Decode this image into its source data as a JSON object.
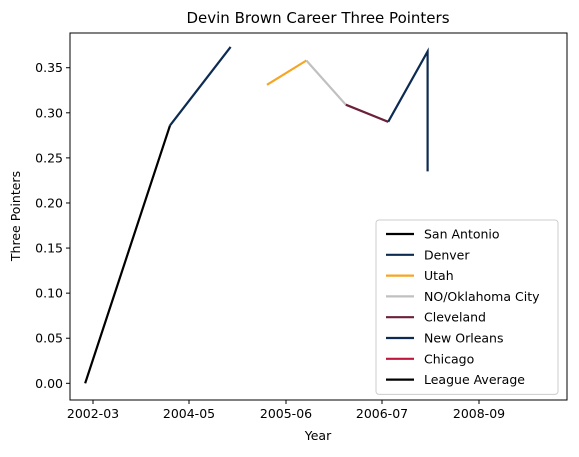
{
  "chart_data": {
    "type": "line",
    "title": "Devin Brown Career Three Pointers",
    "xlabel": "Year",
    "ylabel": "Three Pointers",
    "x_tick_labels": [
      "2002-03",
      "2004-05",
      "2005-06",
      "2006-07",
      "2008-09"
    ],
    "y_ticks": [
      0.0,
      0.05,
      0.1,
      0.15,
      0.2,
      0.25,
      0.3,
      0.35
    ],
    "y_tick_labels": [
      "0.00",
      "0.05",
      "0.10",
      "0.15",
      "0.20",
      "0.25",
      "0.30",
      "0.35"
    ],
    "xlim": [
      2001.75,
      2009.95
    ],
    "ylim": [
      -0.0185,
      0.3885
    ],
    "grid": false,
    "legend_position": "bottom-right",
    "series": [
      {
        "name": "San Antonio",
        "color": "#000000",
        "x": [
          2002,
          2003.4
        ],
        "y": [
          0.0,
          0.286
        ]
      },
      {
        "name": "Denver",
        "color": "#0d2b52",
        "x": [
          2003.4,
          2004.4
        ],
        "y": [
          0.286,
          0.373
        ]
      },
      {
        "name": "Utah",
        "color": "#f5a623",
        "x": [
          2005.0,
          2005.65
        ],
        "y": [
          0.331,
          0.358
        ]
      },
      {
        "name": "NO/Oklahoma City",
        "color": "#c0c0c0",
        "x": [
          2005.65,
          2006.3
        ],
        "y": [
          0.358,
          0.309
        ]
      },
      {
        "name": "Cleveland",
        "color": "#6b2139",
        "x": [
          2006.3,
          2007.0
        ],
        "y": [
          0.309,
          0.29
        ]
      },
      {
        "name": "New Orleans",
        "color": "#0d2b52",
        "x": [
          2007.0,
          2007.65,
          2007.65
        ],
        "y": [
          0.29,
          0.368,
          0.235
        ]
      },
      {
        "name": "Chicago",
        "color": "#c0163e",
        "x": [],
        "y": []
      },
      {
        "name": "League Average",
        "color": "#000000",
        "x": [],
        "y": []
      }
    ]
  }
}
